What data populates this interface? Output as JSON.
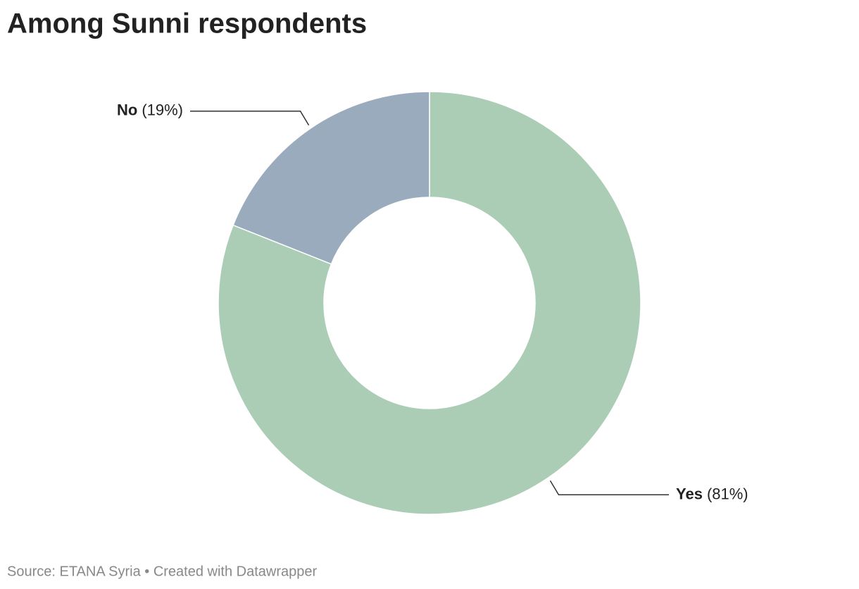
{
  "chart_data": {
    "type": "donut",
    "title": "Among Sunni respondents",
    "categories": [
      "Yes",
      "No"
    ],
    "values": [
      81,
      19
    ],
    "value_labels": [
      "(81%)",
      "(19%)"
    ],
    "colors": [
      "#abcdb5",
      "#99abbd"
    ],
    "source": "Source: ETANA Syria • Created with Datawrapper"
  }
}
